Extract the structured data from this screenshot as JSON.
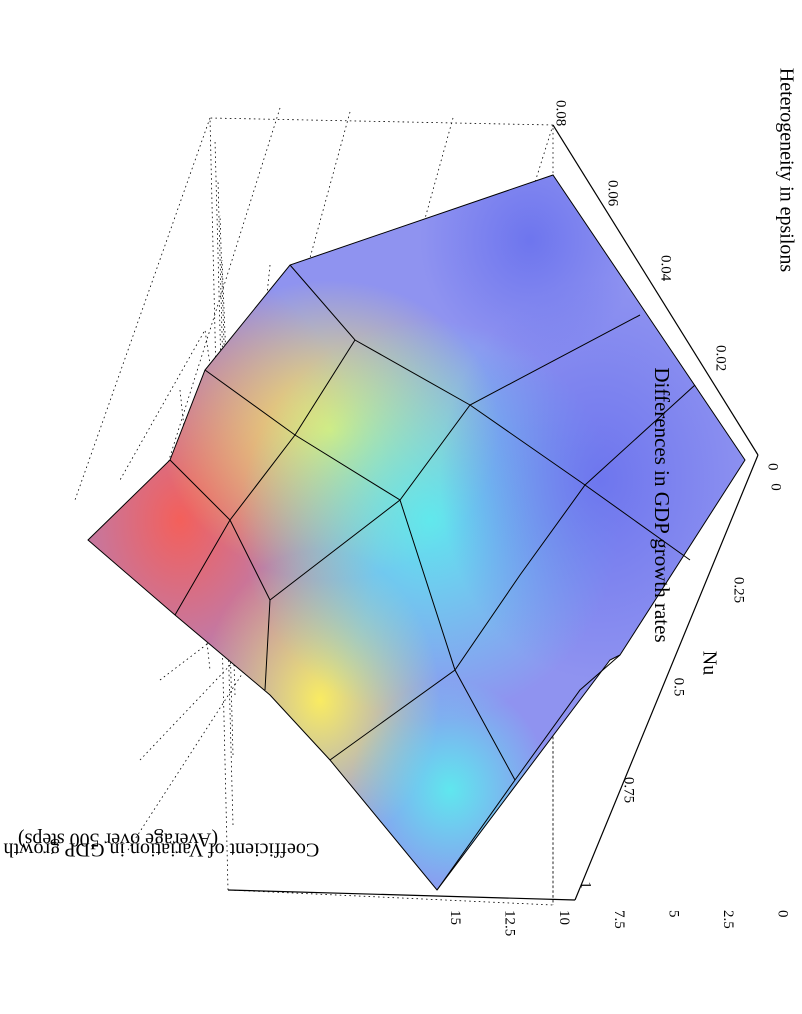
{
  "chart_data": {
    "type": "surface3d",
    "title": "Differences in GDP growth rates",
    "x_axis": {
      "label": "Heterogeneity in epsilons",
      "ticks": [
        "0",
        "0.02",
        "0.04",
        "0.06",
        "0.08"
      ]
    },
    "y_axis": {
      "label": "Nu",
      "ticks": [
        "0",
        "0.25",
        "0.5",
        "0.75",
        "1"
      ]
    },
    "z_axis": {
      "label_line1": "Coefficient of Variation in GDP growth rates",
      "label_line2": "(Average over 500 steps)",
      "ticks": [
        "0",
        "2.5",
        "5",
        "7.5",
        "10",
        "12.5",
        "15"
      ],
      "range": [
        0,
        15
      ]
    },
    "x_values": [
      0,
      0.02,
      0.04,
      0.06,
      0.08
    ],
    "y_values": [
      0,
      0.25,
      0.5,
      0.75,
      1
    ],
    "z_values": [
      [
        4.7,
        4.0,
        3.4,
        4.4,
        7.3
      ],
      [
        3.7,
        7.6,
        9.0,
        9.4,
        11.5
      ],
      [
        5.7,
        10.6,
        12.9,
        13.0,
        14.2
      ],
      [
        4.0,
        8.5,
        13.8,
        14.6,
        16.0
      ],
      [
        6.6,
        12.3,
        15.3,
        16.3,
        16.4
      ]
    ],
    "colormap": "z-gradient blue-cyan-yellow-red",
    "orientation": "page rotated 90° clockwise"
  }
}
